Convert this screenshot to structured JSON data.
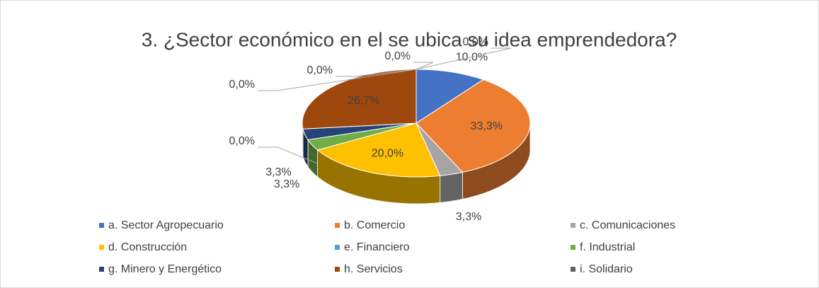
{
  "chart_data": {
    "type": "pie3d",
    "title": "3. ¿Sector económico en el se ubica su idea emprendedora?",
    "categories": [
      "a. Sector Agropecuario",
      "b. Comercio",
      "c. Comunicaciones",
      "d. Construcción",
      "e. Financiero",
      "f. Industrial",
      "g. Minero y Energético",
      "h. Servicios",
      "i. Solidario",
      null,
      null,
      null
    ],
    "values": [
      10.0,
      33.3,
      3.3,
      20.0,
      0.0,
      3.3,
      3.3,
      26.7,
      0.0,
      0.0,
      0.0,
      0.0
    ],
    "value_labels": [
      "10,0%",
      "33,3%",
      "3,3%",
      "20,0%",
      "0,0%",
      "3,3%",
      "3,3%",
      "26,7%",
      "0,0%",
      "0,0%",
      "0,0%",
      "0,0%"
    ],
    "colors": [
      "#4472c4",
      "#ed7d31",
      "#a5a5a5",
      "#ffc000",
      "#5b9bd5",
      "#70ad47",
      "#264478",
      "#9e480e",
      "#636363",
      null,
      null,
      null
    ],
    "legend": "bottom"
  }
}
